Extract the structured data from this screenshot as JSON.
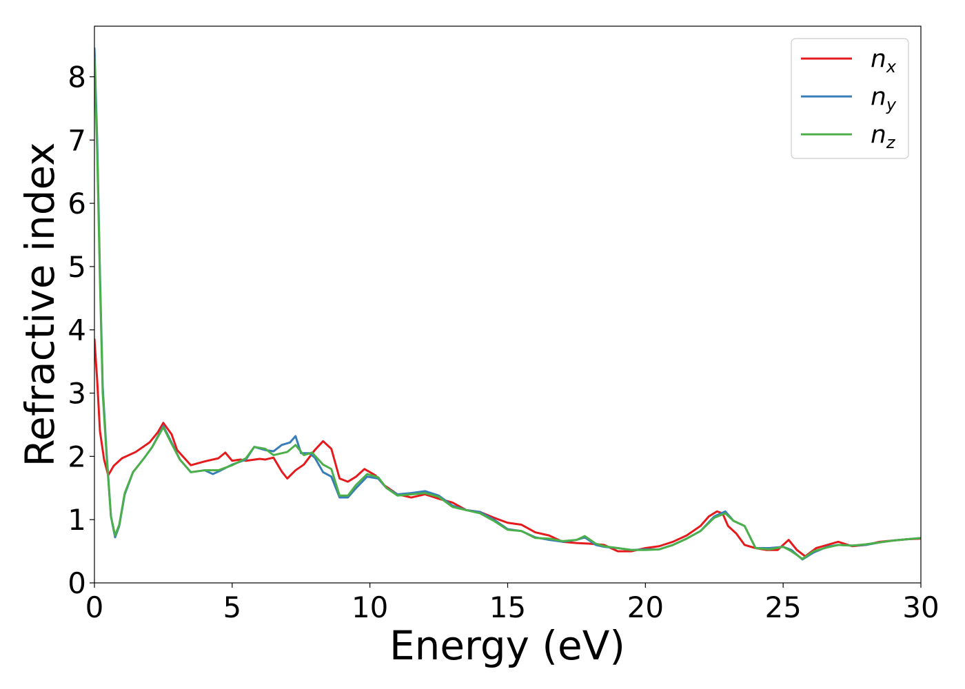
{
  "chart_data": {
    "type": "line",
    "xlabel": "Energy (eV)",
    "ylabel": "Refractive index",
    "xlim": [
      0,
      30
    ],
    "ylim": [
      0,
      8.8
    ],
    "xticks": [
      0,
      5,
      10,
      15,
      20,
      25,
      30
    ],
    "yticks": [
      0,
      1,
      2,
      3,
      4,
      5,
      6,
      7,
      8
    ],
    "grid": false,
    "legend_position": "top-right",
    "series": [
      {
        "name": "n",
        "subscript": "x",
        "color": "#e41a1c",
        "points": [
          [
            0,
            3.85
          ],
          [
            0.1,
            3.2
          ],
          [
            0.2,
            2.4
          ],
          [
            0.35,
            1.95
          ],
          [
            0.5,
            1.7
          ],
          [
            0.7,
            1.85
          ],
          [
            1.0,
            1.97
          ],
          [
            1.5,
            2.07
          ],
          [
            2.0,
            2.22
          ],
          [
            2.3,
            2.38
          ],
          [
            2.5,
            2.53
          ],
          [
            2.8,
            2.35
          ],
          [
            3.0,
            2.1
          ],
          [
            3.5,
            1.86
          ],
          [
            4.0,
            1.92
          ],
          [
            4.5,
            1.97
          ],
          [
            4.75,
            2.06
          ],
          [
            5.0,
            1.93
          ],
          [
            5.3,
            1.95
          ],
          [
            5.5,
            1.93
          ],
          [
            6.0,
            1.96
          ],
          [
            6.2,
            1.95
          ],
          [
            6.5,
            1.98
          ],
          [
            6.8,
            1.76
          ],
          [
            7.0,
            1.65
          ],
          [
            7.3,
            1.78
          ],
          [
            7.6,
            1.87
          ],
          [
            8.0,
            2.1
          ],
          [
            8.3,
            2.24
          ],
          [
            8.6,
            2.12
          ],
          [
            8.9,
            1.65
          ],
          [
            9.2,
            1.6
          ],
          [
            9.5,
            1.68
          ],
          [
            9.8,
            1.8
          ],
          [
            10.2,
            1.7
          ],
          [
            10.5,
            1.55
          ],
          [
            11.0,
            1.4
          ],
          [
            11.5,
            1.35
          ],
          [
            12.0,
            1.4
          ],
          [
            12.5,
            1.33
          ],
          [
            13.0,
            1.27
          ],
          [
            13.5,
            1.15
          ],
          [
            14.0,
            1.12
          ],
          [
            14.5,
            1.03
          ],
          [
            15.0,
            0.95
          ],
          [
            15.5,
            0.92
          ],
          [
            16.0,
            0.8
          ],
          [
            16.5,
            0.75
          ],
          [
            17.0,
            0.65
          ],
          [
            17.5,
            0.63
          ],
          [
            18.0,
            0.62
          ],
          [
            18.5,
            0.6
          ],
          [
            19.0,
            0.5
          ],
          [
            19.5,
            0.5
          ],
          [
            20.0,
            0.55
          ],
          [
            20.5,
            0.58
          ],
          [
            21.0,
            0.65
          ],
          [
            21.5,
            0.75
          ],
          [
            22.0,
            0.9
          ],
          [
            22.3,
            1.05
          ],
          [
            22.6,
            1.13
          ],
          [
            22.8,
            1.1
          ],
          [
            23.0,
            0.9
          ],
          [
            23.3,
            0.78
          ],
          [
            23.6,
            0.6
          ],
          [
            24.0,
            0.55
          ],
          [
            24.4,
            0.52
          ],
          [
            24.8,
            0.52
          ],
          [
            25.0,
            0.6
          ],
          [
            25.2,
            0.68
          ],
          [
            25.5,
            0.52
          ],
          [
            25.8,
            0.42
          ],
          [
            26.2,
            0.55
          ],
          [
            26.6,
            0.6
          ],
          [
            27.0,
            0.65
          ],
          [
            27.5,
            0.58
          ],
          [
            28.0,
            0.6
          ],
          [
            28.5,
            0.65
          ],
          [
            29.0,
            0.67
          ],
          [
            29.5,
            0.69
          ],
          [
            30.0,
            0.7
          ]
        ]
      },
      {
        "name": "n",
        "subscript": "y",
        "color": "#377eb8",
        "points": [
          [
            0,
            8.45
          ],
          [
            0.1,
            7.0
          ],
          [
            0.2,
            4.9
          ],
          [
            0.3,
            3.1
          ],
          [
            0.45,
            2.0
          ],
          [
            0.6,
            1.05
          ],
          [
            0.75,
            0.72
          ],
          [
            0.9,
            0.9
          ],
          [
            1.1,
            1.4
          ],
          [
            1.4,
            1.75
          ],
          [
            1.8,
            1.97
          ],
          [
            2.1,
            2.15
          ],
          [
            2.5,
            2.48
          ],
          [
            2.8,
            2.22
          ],
          [
            3.1,
            1.95
          ],
          [
            3.5,
            1.75
          ],
          [
            4.0,
            1.78
          ],
          [
            4.3,
            1.72
          ],
          [
            4.5,
            1.76
          ],
          [
            5.0,
            1.87
          ],
          [
            5.5,
            1.95
          ],
          [
            5.8,
            2.15
          ],
          [
            6.2,
            2.1
          ],
          [
            6.5,
            2.08
          ],
          [
            6.8,
            2.18
          ],
          [
            7.1,
            2.22
          ],
          [
            7.3,
            2.32
          ],
          [
            7.5,
            2.05
          ],
          [
            7.8,
            2.05
          ],
          [
            8.0,
            1.98
          ],
          [
            8.3,
            1.75
          ],
          [
            8.6,
            1.68
          ],
          [
            8.9,
            1.35
          ],
          [
            9.2,
            1.35
          ],
          [
            9.5,
            1.5
          ],
          [
            9.9,
            1.68
          ],
          [
            10.3,
            1.65
          ],
          [
            10.6,
            1.5
          ],
          [
            11.0,
            1.4
          ],
          [
            11.5,
            1.42
          ],
          [
            12.0,
            1.45
          ],
          [
            12.5,
            1.38
          ],
          [
            13.0,
            1.22
          ],
          [
            13.5,
            1.15
          ],
          [
            14.0,
            1.12
          ],
          [
            14.5,
            1.0
          ],
          [
            15.0,
            0.85
          ],
          [
            15.5,
            0.82
          ],
          [
            16.0,
            0.72
          ],
          [
            16.5,
            0.68
          ],
          [
            17.0,
            0.65
          ],
          [
            17.5,
            0.68
          ],
          [
            17.8,
            0.72
          ],
          [
            18.2,
            0.6
          ],
          [
            18.5,
            0.57
          ],
          [
            19.0,
            0.55
          ],
          [
            19.5,
            0.52
          ],
          [
            20.0,
            0.53
          ],
          [
            20.5,
            0.53
          ],
          [
            21.0,
            0.6
          ],
          [
            21.5,
            0.7
          ],
          [
            22.0,
            0.82
          ],
          [
            22.5,
            1.05
          ],
          [
            22.9,
            1.13
          ],
          [
            23.2,
            0.98
          ],
          [
            23.6,
            0.9
          ],
          [
            24.0,
            0.55
          ],
          [
            24.5,
            0.55
          ],
          [
            25.0,
            0.57
          ],
          [
            25.3,
            0.52
          ],
          [
            25.7,
            0.37
          ],
          [
            26.1,
            0.48
          ],
          [
            26.6,
            0.57
          ],
          [
            27.0,
            0.6
          ],
          [
            27.5,
            0.59
          ],
          [
            28.0,
            0.6
          ],
          [
            28.5,
            0.64
          ],
          [
            29.0,
            0.67
          ],
          [
            29.5,
            0.69
          ],
          [
            30.0,
            0.71
          ]
        ]
      },
      {
        "name": "n",
        "subscript": "z",
        "color": "#4daf4a",
        "points": [
          [
            0,
            8.3
          ],
          [
            0.1,
            6.8
          ],
          [
            0.2,
            4.8
          ],
          [
            0.3,
            3.0
          ],
          [
            0.45,
            1.95
          ],
          [
            0.6,
            1.05
          ],
          [
            0.75,
            0.75
          ],
          [
            0.9,
            0.92
          ],
          [
            1.1,
            1.42
          ],
          [
            1.4,
            1.75
          ],
          [
            1.8,
            1.97
          ],
          [
            2.1,
            2.15
          ],
          [
            2.5,
            2.46
          ],
          [
            2.8,
            2.2
          ],
          [
            3.1,
            1.95
          ],
          [
            3.5,
            1.75
          ],
          [
            4.0,
            1.78
          ],
          [
            4.5,
            1.78
          ],
          [
            5.0,
            1.86
          ],
          [
            5.5,
            1.97
          ],
          [
            5.8,
            2.15
          ],
          [
            6.2,
            2.12
          ],
          [
            6.5,
            2.02
          ],
          [
            7.0,
            2.07
          ],
          [
            7.3,
            2.18
          ],
          [
            7.6,
            2.02
          ],
          [
            7.9,
            2.06
          ],
          [
            8.3,
            1.87
          ],
          [
            8.6,
            1.8
          ],
          [
            8.9,
            1.38
          ],
          [
            9.2,
            1.38
          ],
          [
            9.5,
            1.55
          ],
          [
            9.9,
            1.72
          ],
          [
            10.3,
            1.67
          ],
          [
            10.6,
            1.5
          ],
          [
            11.0,
            1.38
          ],
          [
            11.5,
            1.4
          ],
          [
            12.0,
            1.42
          ],
          [
            12.5,
            1.36
          ],
          [
            13.0,
            1.2
          ],
          [
            13.5,
            1.15
          ],
          [
            14.0,
            1.1
          ],
          [
            14.5,
            0.98
          ],
          [
            15.0,
            0.84
          ],
          [
            15.5,
            0.82
          ],
          [
            16.0,
            0.71
          ],
          [
            16.5,
            0.7
          ],
          [
            17.0,
            0.66
          ],
          [
            17.5,
            0.68
          ],
          [
            17.8,
            0.74
          ],
          [
            18.2,
            0.62
          ],
          [
            18.5,
            0.58
          ],
          [
            19.0,
            0.55
          ],
          [
            19.5,
            0.52
          ],
          [
            20.0,
            0.52
          ],
          [
            20.5,
            0.53
          ],
          [
            21.0,
            0.6
          ],
          [
            21.5,
            0.7
          ],
          [
            22.0,
            0.82
          ],
          [
            22.5,
            1.03
          ],
          [
            22.9,
            1.1
          ],
          [
            23.2,
            0.98
          ],
          [
            23.6,
            0.9
          ],
          [
            24.0,
            0.55
          ],
          [
            24.5,
            0.53
          ],
          [
            25.0,
            0.57
          ],
          [
            25.3,
            0.5
          ],
          [
            25.7,
            0.38
          ],
          [
            26.1,
            0.5
          ],
          [
            26.6,
            0.56
          ],
          [
            27.0,
            0.6
          ],
          [
            27.5,
            0.59
          ],
          [
            28.0,
            0.61
          ],
          [
            28.5,
            0.64
          ],
          [
            29.0,
            0.67
          ],
          [
            29.5,
            0.69
          ],
          [
            30.0,
            0.71
          ]
        ]
      }
    ]
  }
}
